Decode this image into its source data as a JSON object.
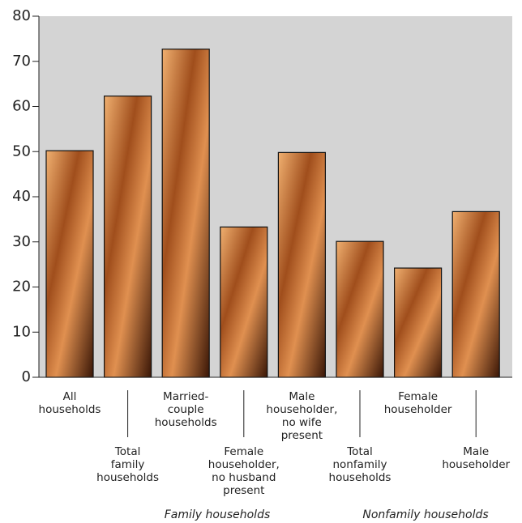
{
  "chart_data": {
    "type": "bar",
    "categories": [
      "All\nhouseholds",
      "Total\nfamily\nhouseholds",
      "Married-\ncouple\nhouseholds",
      "Female\nhouseholder,\nno husband\npresent",
      "Male\nhouseholder,\nno wife\npresent",
      "Total\nnonfamily\nhouseholds",
      "Female\nhouseholder",
      "Male\nhouseholder"
    ],
    "values": [
      50.2,
      62.3,
      72.7,
      33.3,
      49.8,
      30.1,
      24.2,
      36.7
    ],
    "groups": [
      "Family households",
      "Nonfamily households"
    ],
    "ylim": [
      0,
      80
    ],
    "yticks": [
      0,
      10,
      20,
      30,
      40,
      50,
      60,
      70,
      80
    ],
    "color": "#b8642a",
    "background": "#d4d4d4"
  }
}
